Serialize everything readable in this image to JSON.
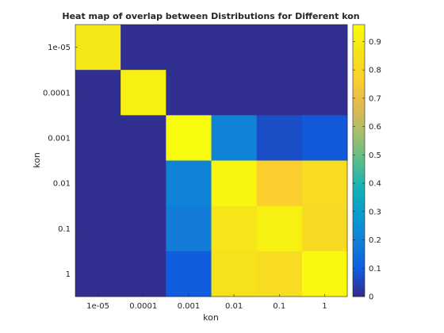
{
  "chart_data": {
    "type": "heatmap",
    "title": "Heat map of overlap between Distributions for Different kon",
    "xlabel": "kon",
    "ylabel": "kon",
    "x_categories": [
      "1e-05",
      "0.0001",
      "0.001",
      "0.01",
      "0.1",
      "1"
    ],
    "y_categories": [
      "1e-05",
      "0.0001",
      "0.001",
      "0.01",
      "0.1",
      "1"
    ],
    "values": [
      [
        0.88,
        0.01,
        0.01,
        0.01,
        0.01,
        0.01
      ],
      [
        0.01,
        0.92,
        0.01,
        0.01,
        0.01,
        0.01
      ],
      [
        0.01,
        0.01,
        0.96,
        0.21,
        0.07,
        0.09
      ],
      [
        0.01,
        0.01,
        0.21,
        0.94,
        0.77,
        0.83
      ],
      [
        0.01,
        0.01,
        0.19,
        0.87,
        0.92,
        0.82
      ],
      [
        0.01,
        0.01,
        0.1,
        0.86,
        0.83,
        0.95
      ]
    ],
    "clim": [
      0,
      0.96
    ],
    "colorbar": {
      "ticks": [
        0,
        0.1,
        0.2,
        0.3,
        0.4,
        0.5,
        0.6,
        0.7,
        0.8,
        0.9
      ],
      "tick_labels": [
        "0",
        "0.1",
        "0.2",
        "0.3",
        "0.4",
        "0.5",
        "0.6",
        "0.7",
        "0.8",
        "0.9"
      ]
    },
    "colormap": "parula",
    "grid": false,
    "legend": "none"
  }
}
